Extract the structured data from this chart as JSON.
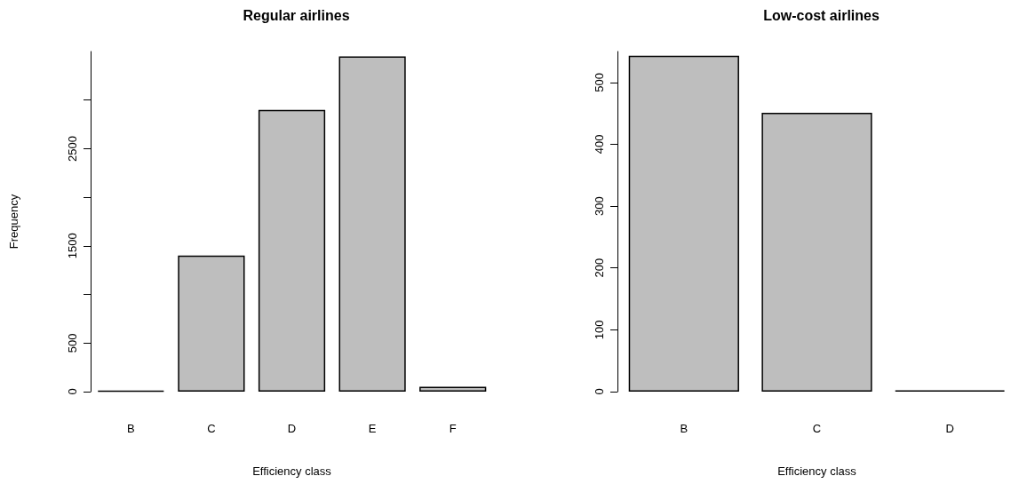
{
  "chart_data": [
    {
      "type": "bar",
      "title": "Regular airlines",
      "xlabel": "Efficiency class",
      "ylabel": "Frequency",
      "categories": [
        "B",
        "C",
        "D",
        "E",
        "F"
      ],
      "values": [
        10,
        1400,
        2900,
        3450,
        50
      ],
      "colors": [
        "#000000",
        "#bebebe",
        "#bebebe",
        "#bebebe",
        "#bebebe"
      ],
      "ylim": [
        0,
        3500
      ],
      "yticks": [
        0,
        500,
        {
          "value": 1000,
          "label": null
        },
        1500,
        {
          "value": 2000,
          "label": null
        },
        2500,
        {
          "value": 3000,
          "label": null
        }
      ],
      "grid": false
    },
    {
      "type": "bar",
      "title": "Low-cost airlines",
      "xlabel": "Efficiency class",
      "categories": [
        "B",
        "C",
        "D"
      ],
      "values": [
        543,
        451,
        2
      ],
      "colors": [
        "#bebebe",
        "#bebebe",
        "#000000"
      ],
      "ylim": [
        0,
        550
      ],
      "yticks": [
        0,
        100,
        200,
        300,
        400,
        500
      ],
      "grid": false
    }
  ]
}
